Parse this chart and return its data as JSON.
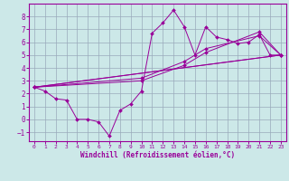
{
  "xlabel": "Windchill (Refroidissement éolien,°C)",
  "xlim": [
    -0.5,
    23.5
  ],
  "ylim": [
    -1.7,
    9.0
  ],
  "yticks": [
    -1,
    0,
    1,
    2,
    3,
    4,
    5,
    6,
    7,
    8
  ],
  "xticks": [
    0,
    1,
    2,
    3,
    4,
    5,
    6,
    7,
    8,
    9,
    10,
    11,
    12,
    13,
    14,
    15,
    16,
    17,
    18,
    19,
    20,
    21,
    22,
    23
  ],
  "background_color": "#cce8e8",
  "line_color": "#990099",
  "grid_color": "#99aabb",
  "lines": [
    {
      "x": [
        0,
        1,
        2,
        3,
        4,
        5,
        6,
        7,
        8,
        9,
        10,
        11,
        12,
        13,
        14,
        15,
        16,
        17,
        18,
        19,
        20,
        21,
        22,
        23
      ],
      "y": [
        2.5,
        2.2,
        1.6,
        1.5,
        0.0,
        0.0,
        -0.2,
        -1.3,
        0.7,
        1.2,
        2.2,
        6.7,
        7.5,
        8.5,
        7.2,
        5.0,
        7.2,
        6.4,
        6.2,
        5.9,
        6.0,
        6.6,
        5.0,
        5.0
      ]
    },
    {
      "x": [
        0,
        23
      ],
      "y": [
        2.5,
        5.0
      ]
    },
    {
      "x": [
        0,
        23
      ],
      "y": [
        2.5,
        5.0
      ]
    },
    {
      "x": [
        0,
        10,
        14,
        16,
        21,
        23
      ],
      "y": [
        2.5,
        3.2,
        4.5,
        5.5,
        6.5,
        5.0
      ]
    },
    {
      "x": [
        0,
        10,
        14,
        16,
        21,
        23
      ],
      "y": [
        2.5,
        3.0,
        4.2,
        5.2,
        6.8,
        5.0
      ]
    }
  ]
}
